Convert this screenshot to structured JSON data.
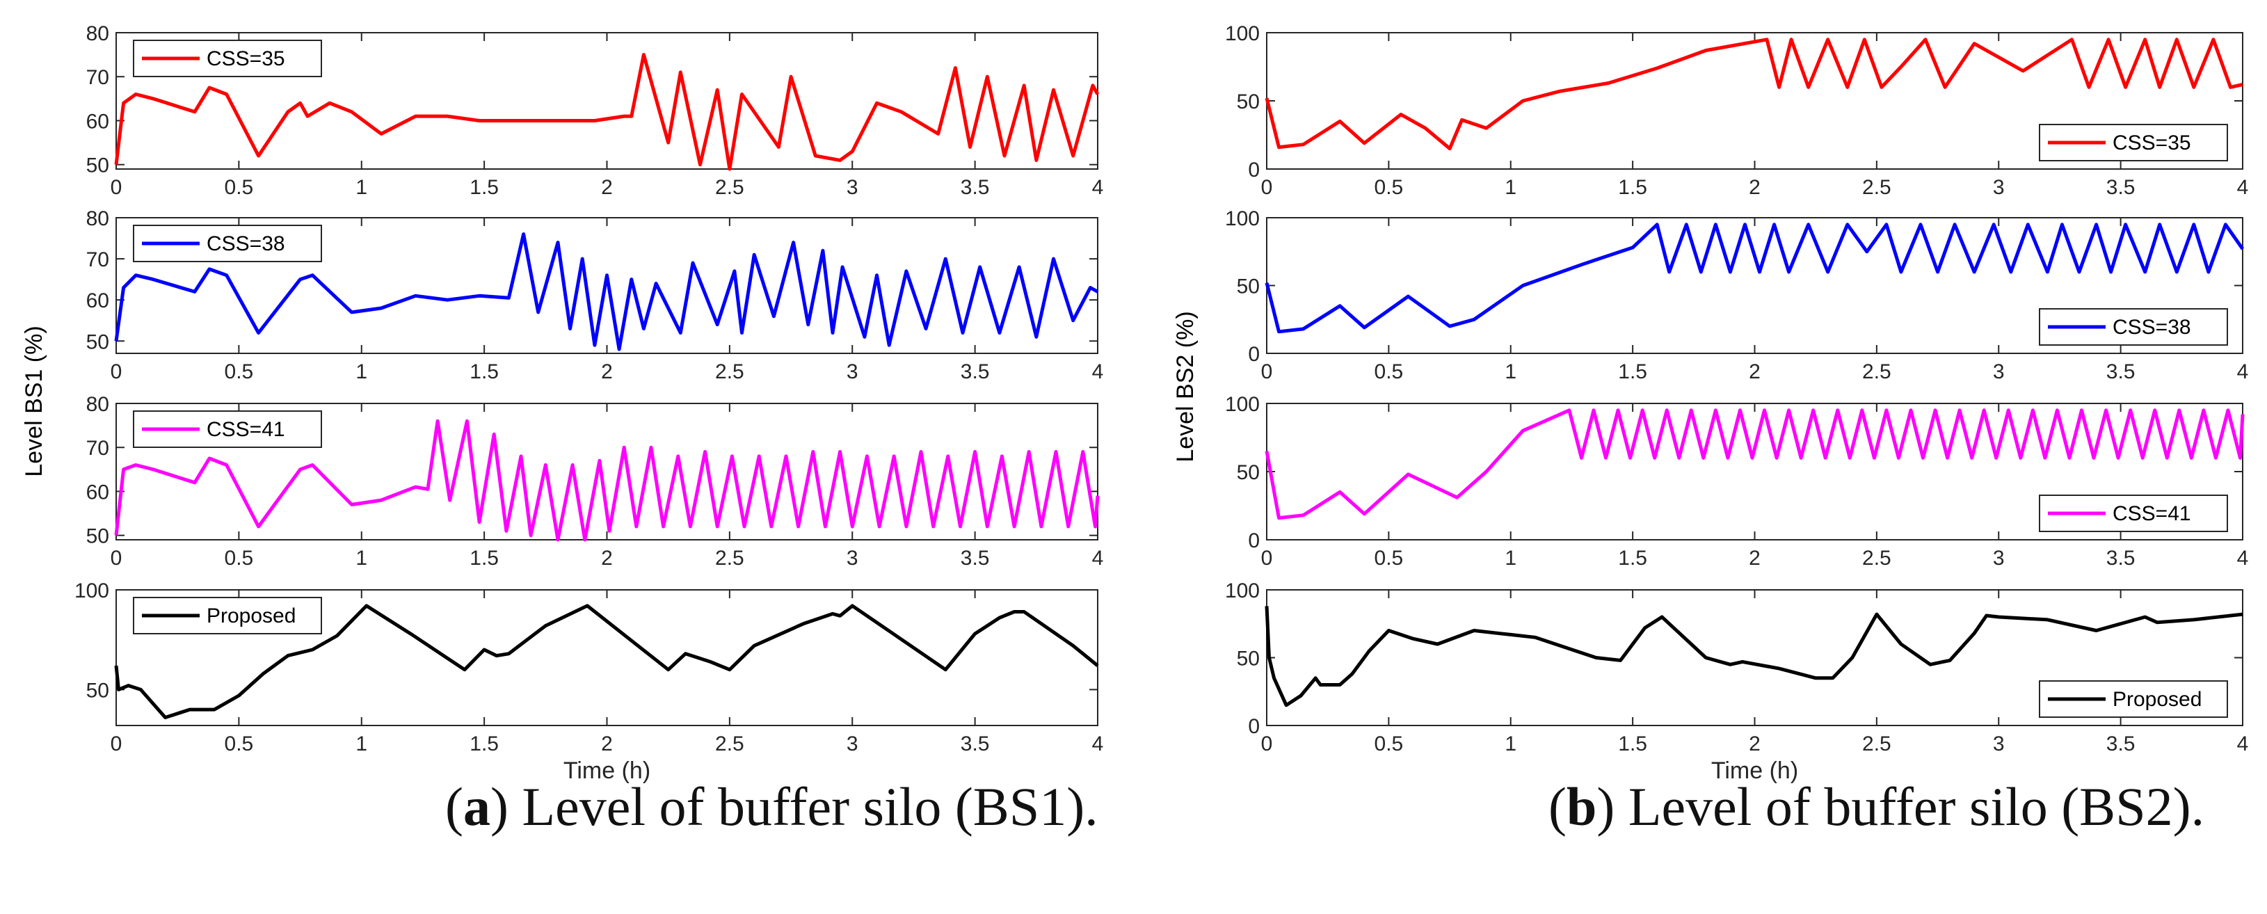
{
  "figure": {
    "captions": [
      {
        "letter": "a",
        "text": ") Level of buffer silo (BS1)."
      },
      {
        "letter": "b",
        "text": ") Level of buffer silo (BS2)."
      }
    ],
    "colors": {
      "CSS=35": "#ff0000",
      "CSS=38": "#0000ff",
      "CSS=41": "#ff00ff",
      "Proposed": "#000000"
    }
  },
  "chart_data": [
    {
      "type": "line",
      "panel": "a1",
      "title": "",
      "xlabel": "",
      "ylabel": "",
      "xlim": [
        0,
        4
      ],
      "ylim": [
        49,
        80
      ],
      "xticks": [
        "0",
        "0.5",
        "1",
        "1.5",
        "2",
        "2.5",
        "3",
        "3.5",
        "4"
      ],
      "yticks": [
        "50",
        "60",
        "70",
        "80"
      ],
      "legend": {
        "position": "top-left"
      },
      "series": [
        {
          "name": "CSS=35",
          "color": "#ff0000",
          "x": [
            0,
            0.03,
            0.08,
            0.15,
            0.32,
            0.38,
            0.45,
            0.58,
            0.7,
            0.75,
            0.78,
            0.87,
            0.96,
            1.08,
            1.22,
            1.35,
            1.48,
            1.62,
            1.8,
            1.95,
            2.07,
            2.1,
            2.15,
            2.25,
            2.3,
            2.38,
            2.45,
            2.5,
            2.55,
            2.7,
            2.75,
            2.85,
            2.95,
            3.0,
            3.1,
            3.2,
            3.35,
            3.42,
            3.48,
            3.55,
            3.62,
            3.7,
            3.75,
            3.82,
            3.9,
            3.98,
            4.0
          ],
          "y": [
            50,
            64,
            66,
            65,
            62,
            67.5,
            66,
            52,
            62,
            64,
            61,
            64,
            62,
            57,
            61,
            61,
            60,
            60,
            60,
            60,
            61,
            61,
            75,
            55,
            71,
            50,
            67,
            49,
            66,
            54,
            70,
            52,
            51,
            53,
            64,
            62,
            57,
            72,
            54,
            70,
            52,
            68,
            51,
            67,
            52,
            68,
            66
          ]
        }
      ]
    },
    {
      "type": "line",
      "panel": "a2",
      "title": "",
      "xlabel": "",
      "ylabel": "Level BS1 (%)",
      "xlim": [
        0,
        4
      ],
      "ylim": [
        47,
        80
      ],
      "xticks": [
        "0",
        "0.5",
        "1",
        "1.5",
        "2",
        "2.5",
        "3",
        "3.5",
        "4"
      ],
      "yticks": [
        "50",
        "60",
        "70",
        "80"
      ],
      "legend": {
        "position": "top-left"
      },
      "series": [
        {
          "name": "CSS=38",
          "color": "#0000ff",
          "x": [
            0,
            0.03,
            0.08,
            0.15,
            0.32,
            0.38,
            0.45,
            0.58,
            0.75,
            0.8,
            0.96,
            1.08,
            1.22,
            1.35,
            1.48,
            1.6,
            1.66,
            1.72,
            1.8,
            1.85,
            1.9,
            1.95,
            2.0,
            2.05,
            2.1,
            2.15,
            2.2,
            2.3,
            2.35,
            2.45,
            2.52,
            2.55,
            2.6,
            2.68,
            2.76,
            2.82,
            2.88,
            2.92,
            2.96,
            3.05,
            3.1,
            3.15,
            3.22,
            3.3,
            3.38,
            3.45,
            3.52,
            3.6,
            3.68,
            3.75,
            3.82,
            3.9,
            3.97,
            4.0
          ],
          "y": [
            50,
            63,
            66,
            65,
            62,
            67.5,
            66,
            52,
            65,
            66,
            57,
            58,
            61,
            60,
            61,
            60.5,
            76,
            57,
            74,
            53,
            70,
            49,
            66,
            48,
            65,
            53,
            64,
            52,
            69,
            54,
            67,
            52,
            71,
            56,
            74,
            54,
            72,
            52,
            68,
            51,
            66,
            49,
            67,
            53,
            70,
            52,
            68,
            52,
            68,
            51,
            70,
            55,
            63,
            62
          ]
        }
      ]
    },
    {
      "type": "line",
      "panel": "a3",
      "title": "",
      "xlabel": "",
      "ylabel": "",
      "xlim": [
        0,
        4
      ],
      "ylim": [
        49,
        80
      ],
      "xticks": [
        "0",
        "0.5",
        "1",
        "1.5",
        "2",
        "2.5",
        "3",
        "3.5",
        "4"
      ],
      "yticks": [
        "50",
        "60",
        "70",
        "80"
      ],
      "legend": {
        "position": "top-left"
      },
      "series": [
        {
          "name": "CSS=41",
          "color": "#ff00ff",
          "x": [
            0,
            0.03,
            0.08,
            0.15,
            0.32,
            0.38,
            0.45,
            0.58,
            0.75,
            0.8,
            0.96,
            1.08,
            1.22,
            1.27,
            1.31,
            1.36,
            1.43,
            1.48,
            1.54,
            1.59,
            1.65,
            1.69,
            1.75,
            1.8,
            1.86,
            1.91,
            1.97,
            2.01,
            2.07,
            2.12,
            2.18,
            2.23,
            2.29,
            2.34,
            2.4,
            2.45,
            2.51,
            2.56,
            2.62,
            2.67,
            2.73,
            2.78,
            2.84,
            2.89,
            2.95,
            3.0,
            3.06,
            3.11,
            3.17,
            3.22,
            3.28,
            3.33,
            3.39,
            3.44,
            3.5,
            3.55,
            3.61,
            3.66,
            3.72,
            3.77,
            3.83,
            3.88,
            3.94,
            3.99,
            4.0
          ],
          "y": [
            50,
            65,
            66,
            65,
            62,
            67.5,
            66,
            52,
            65,
            66,
            57,
            58,
            61,
            60.5,
            76,
            58,
            76,
            53,
            73,
            51,
            68,
            50,
            66,
            49,
            66,
            49,
            67,
            51,
            70,
            52,
            70,
            52,
            68,
            52,
            69,
            52,
            68,
            52,
            68,
            52,
            68,
            52,
            69,
            52,
            69,
            52,
            68,
            52,
            68,
            52,
            69,
            52,
            68,
            52,
            69,
            52,
            68,
            52,
            69,
            52,
            69,
            52,
            69,
            52,
            59
          ]
        }
      ]
    },
    {
      "type": "line",
      "panel": "a4",
      "title": "",
      "xlabel": "Time (h)",
      "ylabel": "",
      "xlim": [
        0,
        4
      ],
      "ylim": [
        32,
        100
      ],
      "xticks": [
        "0",
        "0.5",
        "1",
        "1.5",
        "2",
        "2.5",
        "3",
        "3.5",
        "4"
      ],
      "yticks": [
        "50",
        "100"
      ],
      "legend": {
        "position": "top-left"
      },
      "series": [
        {
          "name": "Proposed",
          "color": "#000000",
          "x": [
            0,
            0.01,
            0.05,
            0.1,
            0.2,
            0.3,
            0.4,
            0.5,
            0.6,
            0.7,
            0.8,
            0.9,
            1.02,
            1.2,
            1.42,
            1.5,
            1.55,
            1.6,
            1.75,
            1.92,
            2.25,
            2.32,
            2.42,
            2.5,
            2.6,
            2.8,
            2.92,
            2.95,
            3.0,
            3.38,
            3.5,
            3.6,
            3.66,
            3.7,
            3.9,
            4.0
          ],
          "y": [
            62,
            50,
            52,
            50,
            36,
            40,
            40,
            47,
            58,
            67,
            70,
            77,
            92,
            78,
            60,
            70,
            67,
            68,
            82,
            92,
            60,
            68,
            64,
            60,
            72,
            83,
            88,
            87,
            92,
            60,
            78,
            86,
            89,
            89,
            72,
            62
          ]
        }
      ]
    },
    {
      "type": "line",
      "panel": "b1",
      "title": "",
      "xlabel": "",
      "ylabel": "",
      "xlim": [
        0,
        4
      ],
      "ylim": [
        0,
        100
      ],
      "xticks": [
        "0",
        "0.5",
        "1",
        "1.5",
        "2",
        "2.5",
        "3",
        "3.5",
        "4"
      ],
      "yticks": [
        "0",
        "50",
        "100"
      ],
      "legend": {
        "position": "bottom-right"
      },
      "series": [
        {
          "name": "CSS=35",
          "color": "#ff0000",
          "x": [
            0,
            0.05,
            0.15,
            0.3,
            0.4,
            0.55,
            0.65,
            0.75,
            0.8,
            0.9,
            1.05,
            1.2,
            1.4,
            1.6,
            1.8,
            2.05,
            2.1,
            2.15,
            2.22,
            2.3,
            2.38,
            2.45,
            2.52,
            2.6,
            2.7,
            2.78,
            2.9,
            3.1,
            3.3,
            3.37,
            3.45,
            3.52,
            3.6,
            3.66,
            3.73,
            3.8,
            3.88,
            3.95,
            4.0
          ],
          "y": [
            52,
            16,
            18,
            35,
            19,
            40,
            30,
            15,
            36,
            30,
            50,
            57,
            63,
            74,
            87,
            95,
            60,
            95,
            60,
            95,
            60,
            95,
            60,
            75,
            95,
            60,
            92,
            72,
            95,
            60,
            95,
            60,
            95,
            60,
            95,
            60,
            95,
            60,
            62
          ]
        }
      ]
    },
    {
      "type": "line",
      "panel": "b2",
      "title": "",
      "xlabel": "",
      "ylabel": "Level BS2 (%)",
      "xlim": [
        0,
        4
      ],
      "ylim": [
        0,
        100
      ],
      "xticks": [
        "0",
        "0.5",
        "1",
        "1.5",
        "2",
        "2.5",
        "3",
        "3.5",
        "4"
      ],
      "yticks": [
        "0",
        "50",
        "100"
      ],
      "legend": {
        "position": "bottom-right"
      },
      "series": [
        {
          "name": "CSS=38",
          "color": "#0000ff",
          "x": [
            0,
            0.05,
            0.15,
            0.3,
            0.4,
            0.58,
            0.75,
            0.85,
            1.05,
            1.3,
            1.5,
            1.6,
            1.65,
            1.72,
            1.78,
            1.84,
            1.9,
            1.96,
            2.02,
            2.08,
            2.14,
            2.22,
            2.3,
            2.38,
            2.46,
            2.54,
            2.6,
            2.68,
            2.75,
            2.82,
            2.9,
            2.98,
            3.05,
            3.12,
            3.2,
            3.26,
            3.33,
            3.4,
            3.46,
            3.52,
            3.6,
            3.66,
            3.73,
            3.8,
            3.86,
            3.93,
            4.0
          ],
          "y": [
            52,
            16,
            18,
            35,
            19,
            42,
            20,
            25,
            50,
            66,
            78,
            95,
            60,
            95,
            60,
            95,
            60,
            95,
            60,
            95,
            60,
            95,
            60,
            95,
            75,
            95,
            60,
            95,
            60,
            95,
            60,
            95,
            60,
            95,
            60,
            95,
            60,
            95,
            60,
            95,
            60,
            95,
            60,
            95,
            60,
            95,
            77
          ]
        }
      ]
    },
    {
      "type": "line",
      "panel": "b3",
      "title": "",
      "xlabel": "",
      "ylabel": "",
      "xlim": [
        0,
        4
      ],
      "ylim": [
        0,
        100
      ],
      "xticks": [
        "0",
        "0.5",
        "1",
        "1.5",
        "2",
        "2.5",
        "3",
        "3.5",
        "4"
      ],
      "yticks": [
        "0",
        "50",
        "100"
      ],
      "legend": {
        "position": "bottom-right"
      },
      "series": [
        {
          "name": "CSS=41",
          "color": "#ff00ff",
          "x": [
            0,
            0.05,
            0.15,
            0.3,
            0.4,
            0.58,
            0.78,
            0.9,
            1.05,
            1.24,
            1.29,
            1.34,
            1.39,
            1.44,
            1.49,
            1.54,
            1.59,
            1.64,
            1.69,
            1.74,
            1.79,
            1.84,
            1.89,
            1.94,
            1.99,
            2.04,
            2.09,
            2.14,
            2.19,
            2.24,
            2.29,
            2.34,
            2.39,
            2.44,
            2.49,
            2.54,
            2.59,
            2.64,
            2.69,
            2.74,
            2.79,
            2.84,
            2.89,
            2.94,
            2.99,
            3.04,
            3.09,
            3.14,
            3.19,
            3.24,
            3.29,
            3.34,
            3.39,
            3.44,
            3.49,
            3.54,
            3.59,
            3.64,
            3.69,
            3.74,
            3.79,
            3.84,
            3.89,
            3.94,
            3.99,
            4.0
          ],
          "y": [
            65,
            16,
            18,
            35,
            19,
            48,
            31,
            50,
            80,
            95,
            60,
            95,
            60,
            95,
            60,
            95,
            60,
            95,
            60,
            95,
            60,
            95,
            60,
            95,
            60,
            95,
            60,
            95,
            60,
            95,
            60,
            95,
            60,
            95,
            60,
            95,
            60,
            95,
            60,
            95,
            60,
            95,
            60,
            95,
            60,
            95,
            60,
            95,
            60,
            95,
            60,
            95,
            60,
            95,
            60,
            95,
            60,
            95,
            60,
            95,
            60,
            95,
            60,
            95,
            60,
            92
          ]
        }
      ]
    },
    {
      "type": "line",
      "panel": "b4",
      "title": "",
      "xlabel": "Time (h)",
      "ylabel": "",
      "xlim": [
        0,
        4
      ],
      "ylim": [
        0,
        100
      ],
      "xticks": [
        "0",
        "0.5",
        "1",
        "1.5",
        "2",
        "2.5",
        "3",
        "3.5",
        "4"
      ],
      "yticks": [
        "0",
        "50",
        "100"
      ],
      "legend": {
        "position": "bottom-right"
      },
      "series": [
        {
          "name": "Proposed",
          "color": "#000000",
          "x": [
            0,
            0.01,
            0.03,
            0.08,
            0.14,
            0.2,
            0.22,
            0.3,
            0.35,
            0.42,
            0.5,
            0.6,
            0.7,
            0.85,
            1.0,
            1.1,
            1.35,
            1.45,
            1.55,
            1.62,
            1.8,
            1.9,
            1.95,
            2.1,
            2.25,
            2.32,
            2.4,
            2.5,
            2.6,
            2.72,
            2.8,
            2.9,
            2.95,
            3.0,
            3.2,
            3.4,
            3.6,
            3.65,
            3.8,
            4.0
          ],
          "y": [
            88,
            50,
            35,
            15,
            22,
            35,
            30,
            30,
            38,
            55,
            70,
            64,
            60,
            70,
            67,
            65,
            50,
            48,
            72,
            80,
            50,
            45,
            47,
            42,
            35,
            35,
            50,
            82,
            60,
            45,
            48,
            68,
            81,
            80,
            78,
            70,
            80,
            76,
            78,
            82
          ]
        }
      ]
    }
  ]
}
